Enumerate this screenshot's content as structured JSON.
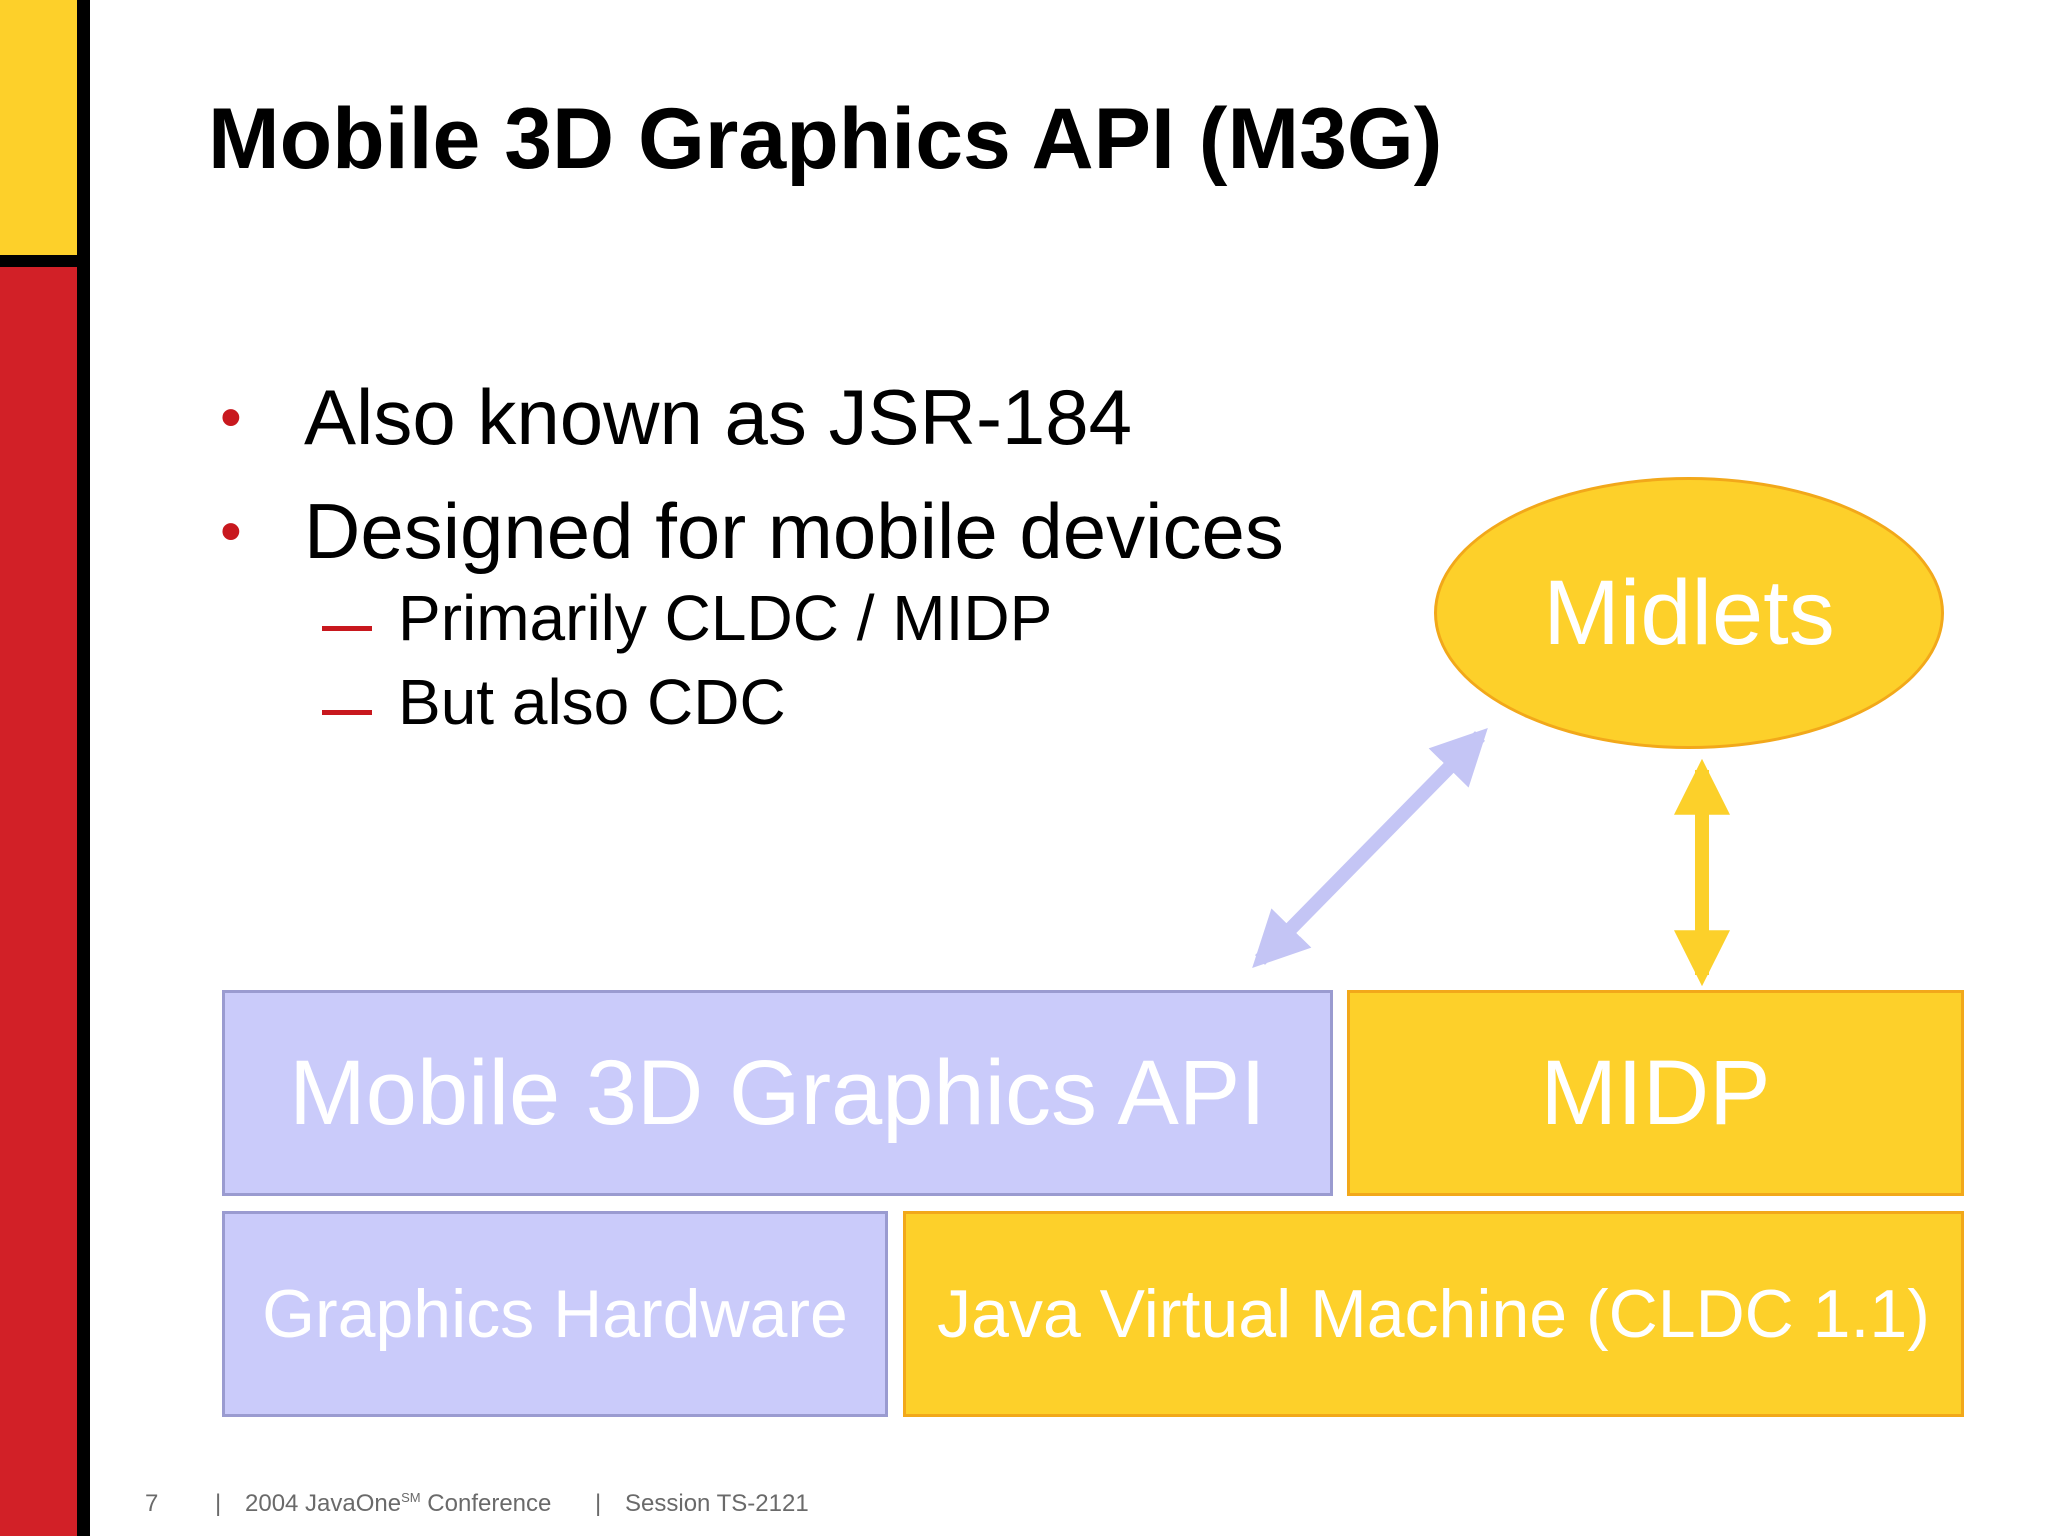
{
  "slide": {
    "title": "Mobile 3D Graphics API (M3G)",
    "bullets": [
      {
        "marker": "•",
        "text": "Also known as JSR-184"
      },
      {
        "marker": "•",
        "text": "Designed for mobile devices"
      }
    ],
    "sub_bullets": [
      {
        "text": "Primarily CLDC / MIDP"
      },
      {
        "text": "But also CDC"
      }
    ]
  },
  "diagram": {
    "midlets": "Midlets",
    "m3g_api": "Mobile 3D Graphics API",
    "midp": "MIDP",
    "graphics_hardware": "Graphics Hardware",
    "jvm": "Java Virtual Machine (CLDC 1.1)"
  },
  "footer": {
    "page_number": "7",
    "separator": "|",
    "conference_pre": "2004 JavaOne",
    "conference_sup": "SM",
    "conference_post": " Conference",
    "session": "Session TS-2121"
  },
  "colors": {
    "accent_red": "#D22027",
    "accent_yellow": "#FDD02A",
    "lavender": "#CACBFA",
    "lavender_arrow": "#C4C5F5",
    "yellow_arrow": "#FCD02A"
  }
}
